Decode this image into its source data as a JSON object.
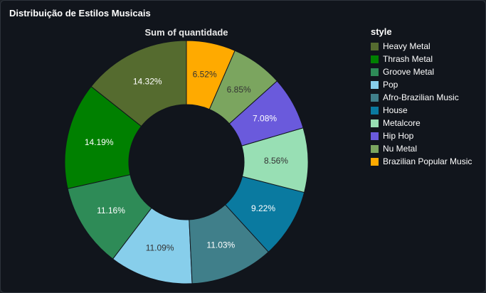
{
  "card": {
    "title": "Distribuição de Estilos Musicais"
  },
  "chart_data": {
    "type": "pie",
    "subtitle": "Sum of quantidade",
    "legend_title": "style",
    "legend_position": "right",
    "donut": true,
    "categories": [
      "Heavy Metal",
      "Thrash Metal",
      "Groove Metal",
      "Pop",
      "Afro-Brazilian Music",
      "House",
      "Metalcore",
      "Hip Hop",
      "Nu Metal",
      "Brazilian Popular Music"
    ],
    "values": [
      14.32,
      14.19,
      11.16,
      11.09,
      11.03,
      9.22,
      8.56,
      7.08,
      6.85,
      6.52
    ],
    "labels": [
      "14.32%",
      "14.19%",
      "11.16%",
      "11.09%",
      "11.03%",
      "9.22%",
      "8.56%",
      "7.08%",
      "6.85%",
      "6.52%"
    ],
    "colors": [
      "#556b2f",
      "#008000",
      "#2e8b57",
      "#87ceeb",
      "#407f8a",
      "#0a7aa0",
      "#98dfb4",
      "#6a5adc",
      "#7ba55f",
      "#ffaa00"
    ],
    "label_colors": [
      "#ffffff",
      "#ffffff",
      "#ffffff",
      "#333333",
      "#ffffff",
      "#ffffff",
      "#333333",
      "#ffffff",
      "#333333",
      "#333333"
    ]
  }
}
